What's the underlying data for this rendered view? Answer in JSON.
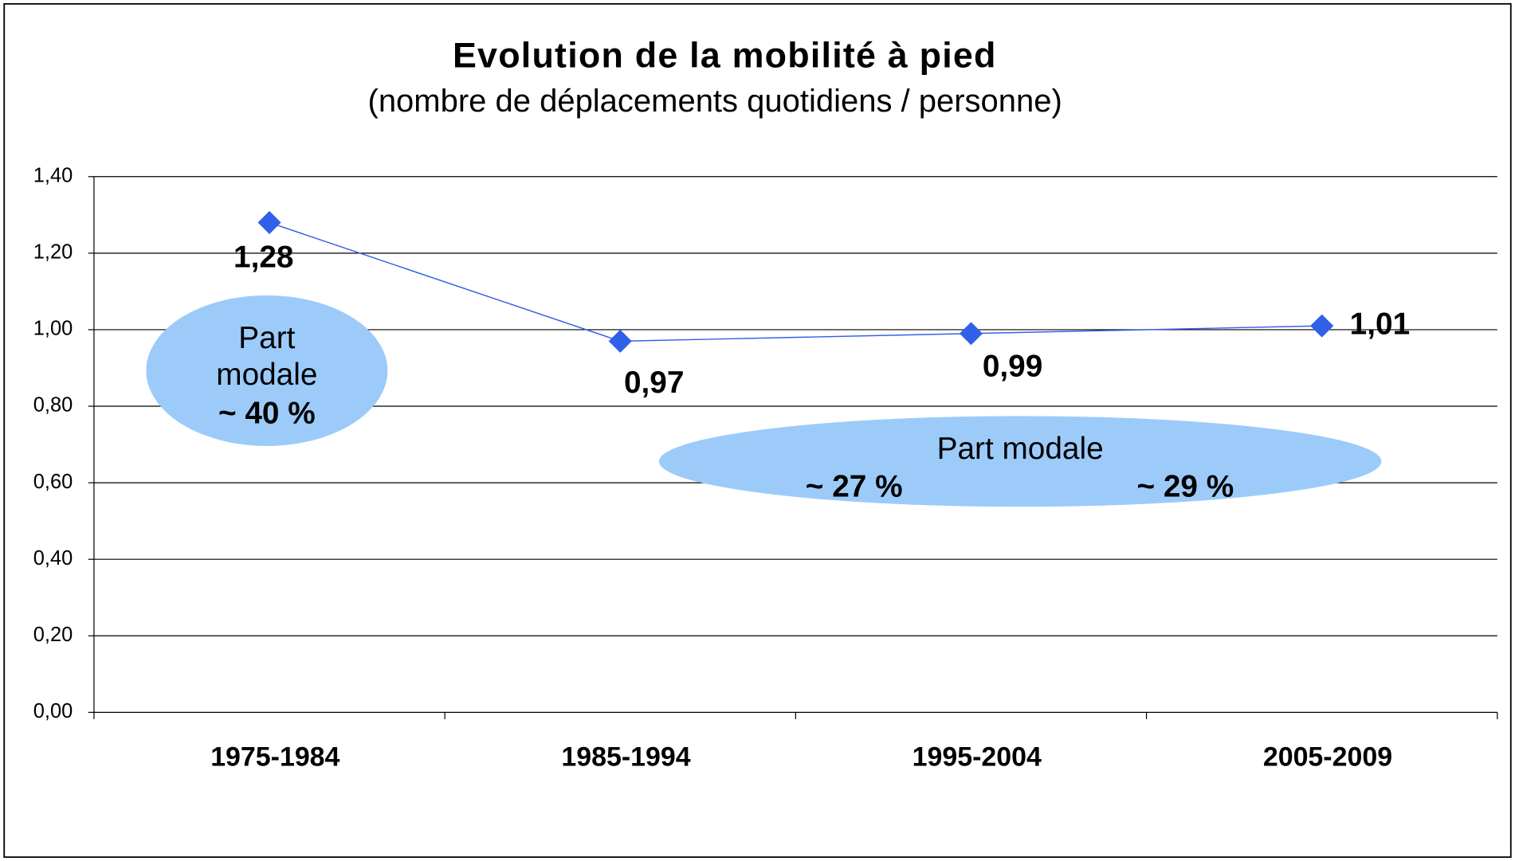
{
  "chart_data": {
    "type": "line",
    "title": "Evolution de la mobilité à pied",
    "subtitle": "(nombre de déplacements quotidiens / personne)",
    "categories": [
      "1975-1984",
      "1985-1994",
      "1995-2004",
      "2005-2009"
    ],
    "series": [
      {
        "name": null,
        "color": "#3060e8",
        "values": [
          1.28,
          0.97,
          0.99,
          1.01
        ],
        "value_labels": [
          "1,28",
          "0,97",
          "0,99",
          "1,01"
        ]
      }
    ],
    "ylim": [
      0,
      1.4
    ],
    "yticks": [
      {
        "value": 0,
        "label": "0,00"
      },
      {
        "value": 0.2,
        "label": "0,20"
      },
      {
        "value": 0.4,
        "label": "0,40"
      },
      {
        "value": 0.6,
        "label": "0,60"
      },
      {
        "value": 0.8,
        "label": "0,80"
      },
      {
        "value": 1,
        "label": "1,00"
      },
      {
        "value": 1.2,
        "label": "1,20"
      },
      {
        "value": 1.4,
        "label": "1,40"
      }
    ],
    "grid": true,
    "annotations": [
      "Part",
      "modale",
      "~ 40 %",
      "Part modale",
      "~ 27 %",
      "~ 29 %"
    ]
  }
}
